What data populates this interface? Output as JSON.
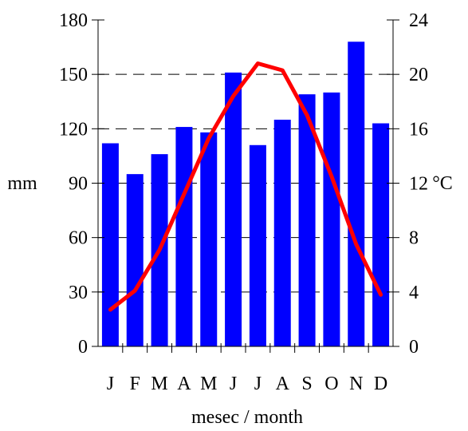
{
  "chart_data": {
    "type": "bar",
    "categories": [
      "J",
      "F",
      "M",
      "A",
      "M",
      "J",
      "J",
      "A",
      "S",
      "O",
      "N",
      "D"
    ],
    "series": [
      {
        "type": "bar",
        "axis": "left",
        "color": "#0000ff",
        "values": [
          112,
          95,
          106,
          121,
          118,
          151,
          111,
          125,
          139,
          140,
          168,
          123
        ]
      },
      {
        "type": "line",
        "axis": "right",
        "color": "#ff0000",
        "values": [
          2.7,
          4.1,
          7.1,
          11.2,
          15.3,
          18.4,
          20.8,
          20.3,
          17.0,
          12.5,
          7.5,
          3.8
        ]
      }
    ],
    "left_axis": {
      "label": "mm",
      "ylim": [
        0,
        180
      ],
      "ticks": [
        0,
        30,
        60,
        90,
        120,
        150,
        180
      ]
    },
    "right_axis": {
      "label": "°C",
      "ylim": [
        0,
        24
      ],
      "ticks": [
        0,
        4,
        8,
        12,
        16,
        20,
        24
      ]
    },
    "xlabel": "mesec / month",
    "grid": "dashed horizontal lines"
  }
}
